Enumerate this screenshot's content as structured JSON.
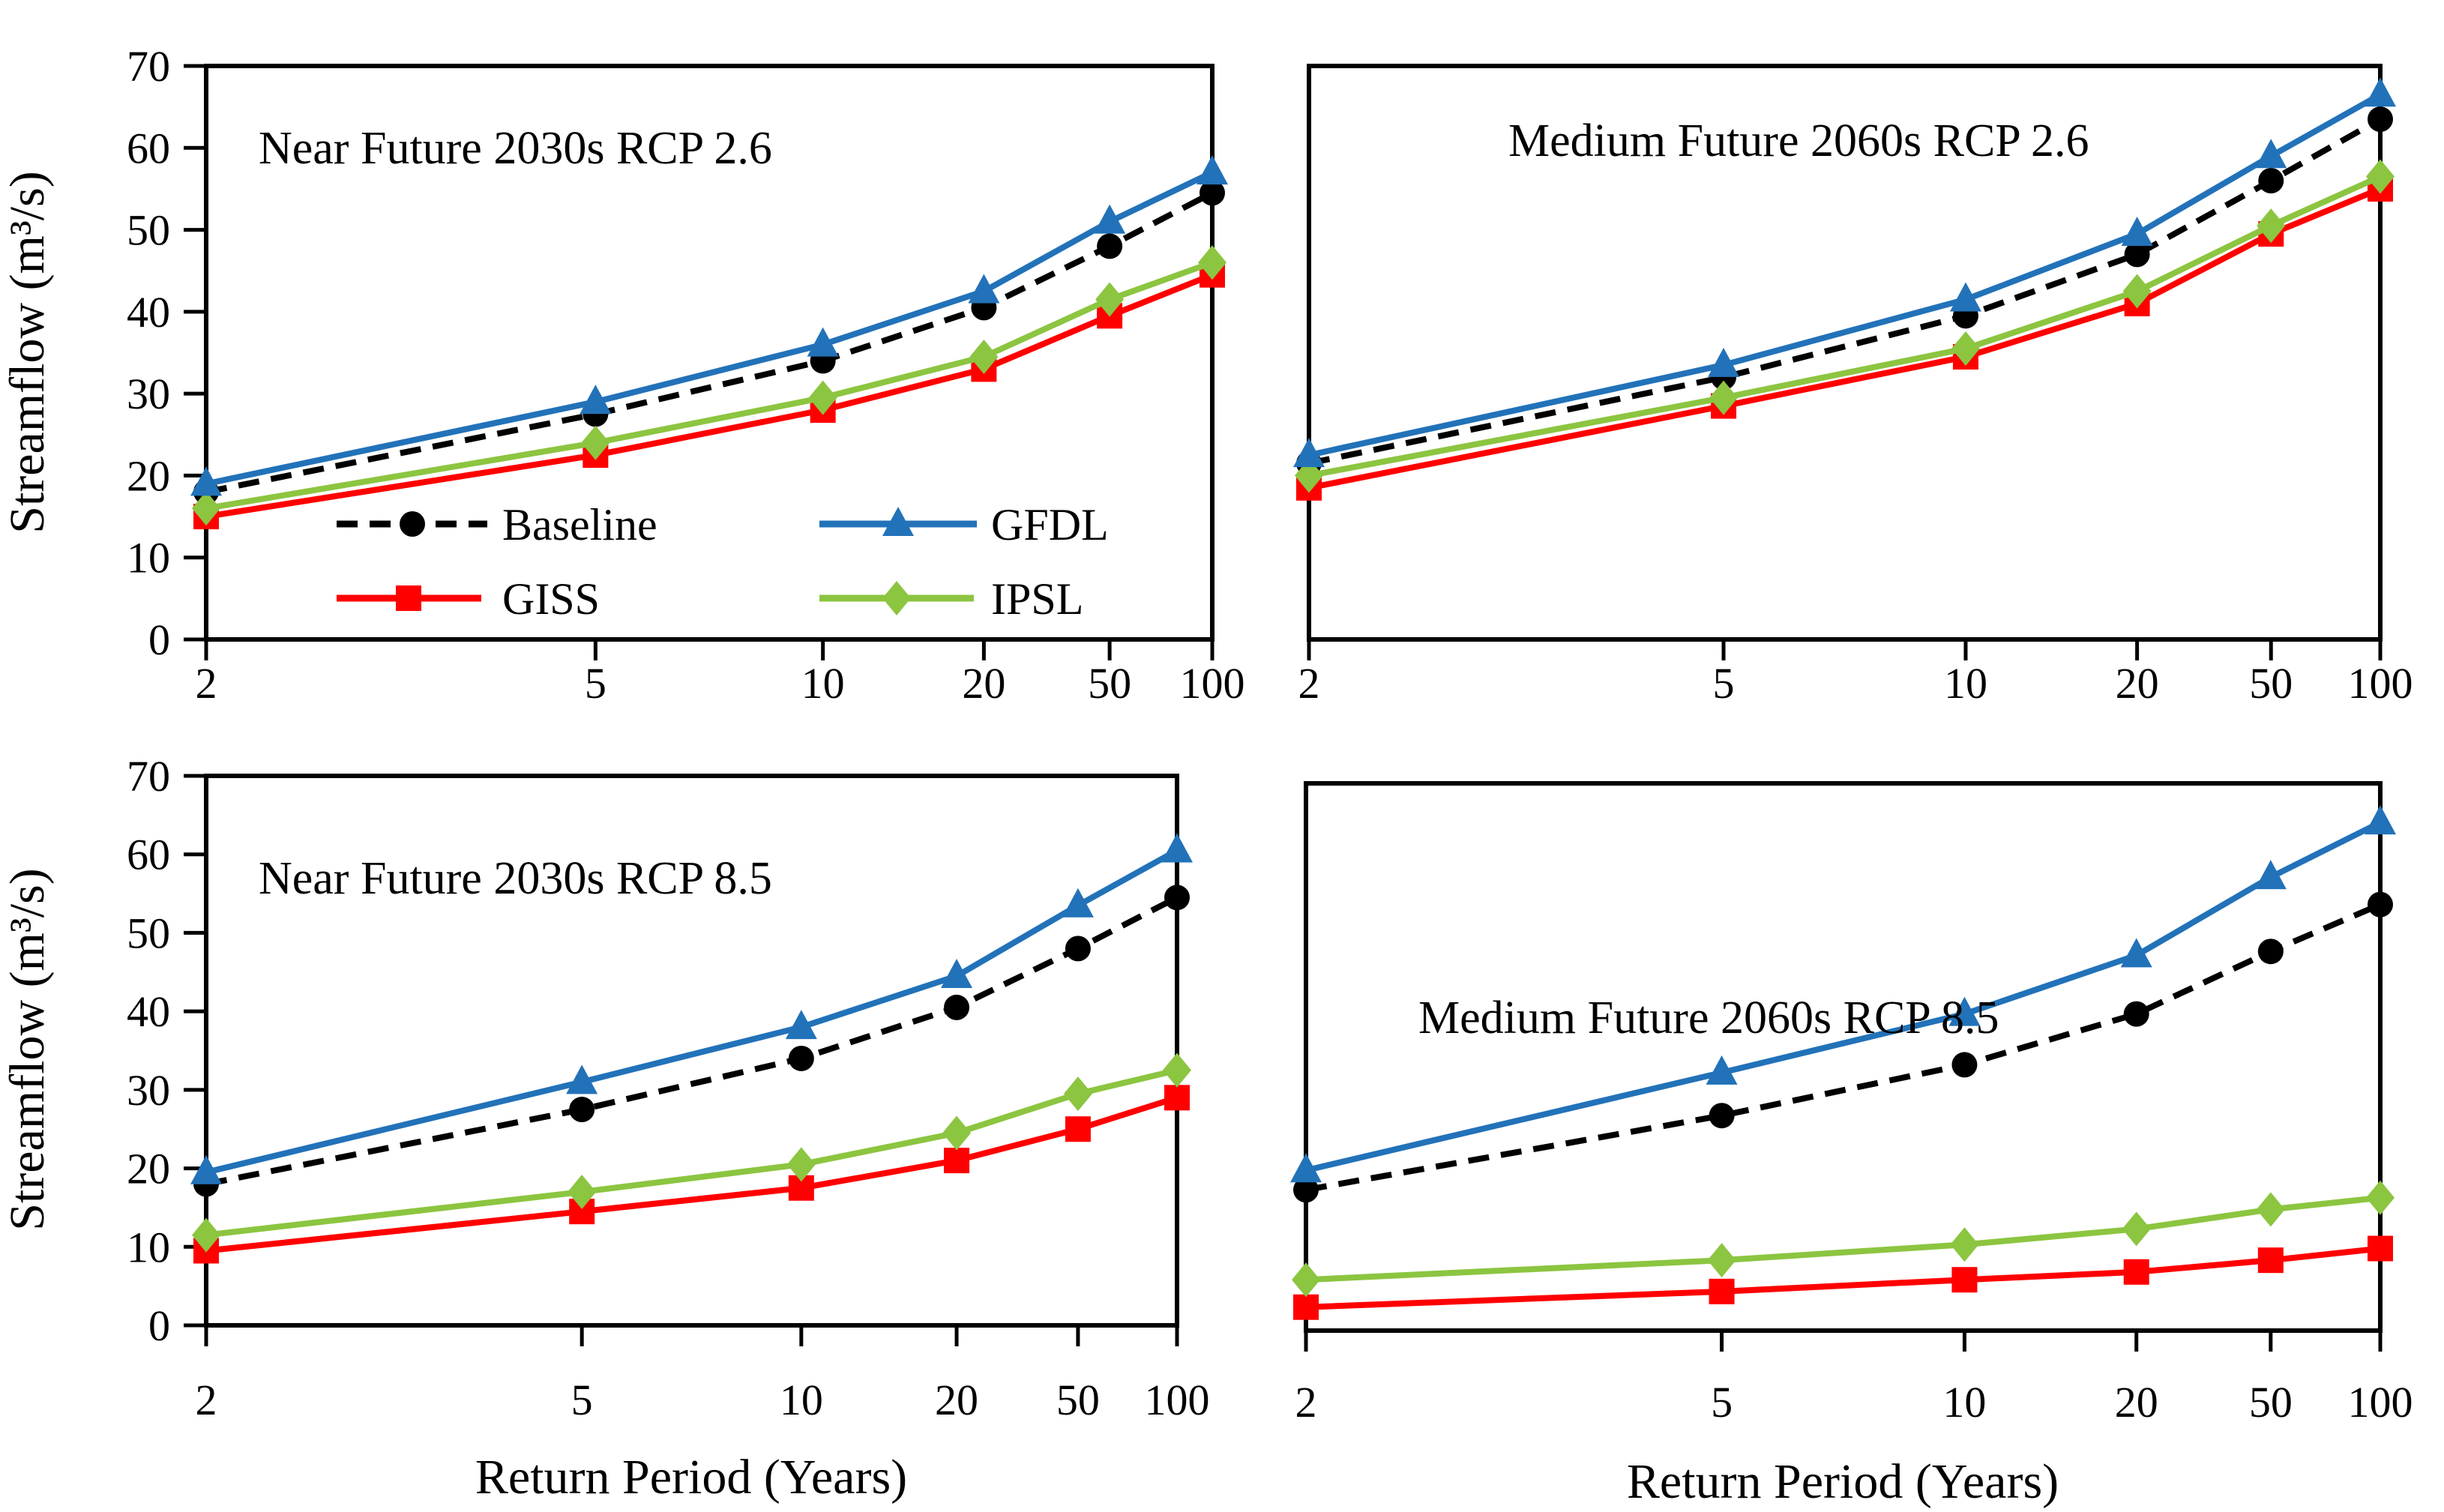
{
  "figure": {
    "background": "#FFFFFF",
    "y_axis_label": "Streamflow (m³/s)",
    "x_axis_label": "Return Period (Years)",
    "x_tick_labels": [
      "2",
      "5",
      "10",
      "20",
      "50",
      "100"
    ],
    "y_tick_labels": [
      "0",
      "10",
      "20",
      "30",
      "40",
      "50",
      "60",
      "70"
    ],
    "colors": {
      "baseline": "#000000",
      "gfdl": "#2272B9",
      "giss": "#FF0000",
      "ipsl": "#8CC540",
      "axis": "#000000"
    },
    "legend": {
      "items": [
        {
          "label": "Baseline",
          "series": "Baseline"
        },
        {
          "label": "GFDL",
          "series": "GFDL"
        },
        {
          "label": "GISS",
          "series": "GISS"
        },
        {
          "label": "IPSL",
          "series": "IPSL"
        }
      ]
    }
  },
  "chart_data": [
    {
      "type": "line",
      "title": "Near Future 2030s RCP 2.6",
      "x": [
        2,
        5,
        10,
        20,
        50,
        100
      ],
      "x_scale": "log-of-rank",
      "xlabel": "Return Period (Years)",
      "ylabel": "Streamflow (m³/s)",
      "ylim": [
        0,
        70
      ],
      "grid": false,
      "legend_position": "inside-lower-left",
      "series": [
        {
          "name": "Baseline",
          "color": "#000000",
          "marker": "circle",
          "line": "dashed",
          "values": [
            18.0,
            27.5,
            34.0,
            40.5,
            48.0,
            54.5
          ]
        },
        {
          "name": "GFDL",
          "color": "#2272B9",
          "marker": "triangle",
          "line": "solid",
          "values": [
            19.0,
            29.0,
            36.0,
            42.5,
            51.0,
            57.0
          ]
        },
        {
          "name": "GISS",
          "color": "#FF0000",
          "marker": "square",
          "line": "solid",
          "values": [
            15.0,
            22.5,
            28.0,
            33.0,
            39.5,
            44.5
          ]
        },
        {
          "name": "IPSL",
          "color": "#8CC540",
          "marker": "diamond",
          "line": "solid",
          "values": [
            16.0,
            24.0,
            29.5,
            34.5,
            41.5,
            46.0
          ]
        }
      ]
    },
    {
      "type": "line",
      "title": "Medium Future 2060s RCP 2.6",
      "x": [
        2,
        5,
        10,
        20,
        50,
        100
      ],
      "x_scale": "log-of-rank",
      "xlabel": "Return Period (Years)",
      "ylabel": "Streamflow (m³/s)",
      "ylim": [
        0,
        70
      ],
      "grid": false,
      "legend_position": "none",
      "series": [
        {
          "name": "Baseline",
          "color": "#000000",
          "marker": "circle",
          "line": "dashed",
          "values": [
            21.5,
            32.0,
            39.5,
            47.0,
            56.0,
            63.5
          ]
        },
        {
          "name": "GFDL",
          "color": "#2272B9",
          "marker": "triangle",
          "line": "solid",
          "values": [
            22.5,
            33.5,
            41.5,
            49.5,
            59.0,
            66.5
          ]
        },
        {
          "name": "GISS",
          "color": "#FF0000",
          "marker": "square",
          "line": "solid",
          "values": [
            18.5,
            28.5,
            34.5,
            41.0,
            49.5,
            55.0
          ]
        },
        {
          "name": "IPSL",
          "color": "#8CC540",
          "marker": "diamond",
          "line": "solid",
          "values": [
            20.0,
            29.5,
            35.5,
            42.5,
            50.5,
            56.5
          ]
        }
      ]
    },
    {
      "type": "line",
      "title": "Near Future 2030s RCP 8.5",
      "x": [
        2,
        5,
        10,
        20,
        50,
        100
      ],
      "x_scale": "log-of-rank",
      "xlabel": "Return Period (Years)",
      "ylabel": "Streamflow (m³/s)",
      "ylim": [
        0,
        70
      ],
      "grid": false,
      "legend_position": "none",
      "series": [
        {
          "name": "Baseline",
          "color": "#000000",
          "marker": "circle",
          "line": "dashed",
          "values": [
            18.0,
            27.5,
            34.0,
            40.5,
            48.0,
            54.5
          ]
        },
        {
          "name": "GFDL",
          "color": "#2272B9",
          "marker": "triangle",
          "line": "solid",
          "values": [
            19.5,
            31.0,
            38.0,
            44.5,
            53.5,
            60.5
          ]
        },
        {
          "name": "GISS",
          "color": "#FF0000",
          "marker": "square",
          "line": "solid",
          "values": [
            9.5,
            14.5,
            17.5,
            21.0,
            25.0,
            29.0
          ]
        },
        {
          "name": "IPSL",
          "color": "#8CC540",
          "marker": "diamond",
          "line": "solid",
          "values": [
            11.5,
            17.0,
            20.5,
            24.5,
            29.5,
            32.5
          ]
        }
      ]
    },
    {
      "type": "line",
      "title": "Medium Future 2060s RCP 8.5",
      "x": [
        2,
        5,
        10,
        20,
        50,
        100
      ],
      "x_scale": "log-of-rank",
      "xlabel": "Return Period (Years)",
      "ylabel": "Streamflow (m³/s)",
      "ylim": [
        0,
        70
      ],
      "grid": false,
      "legend_position": "none",
      "series": [
        {
          "name": "Baseline",
          "color": "#000000",
          "marker": "circle",
          "line": "dashed",
          "values": [
            18.0,
            27.5,
            34.0,
            40.5,
            48.5,
            54.5
          ]
        },
        {
          "name": "GFDL",
          "color": "#2272B9",
          "marker": "triangle",
          "line": "solid",
          "values": [
            20.5,
            33.0,
            40.5,
            48.0,
            58.0,
            65.0
          ]
        },
        {
          "name": "GISS",
          "color": "#FF0000",
          "marker": "square",
          "line": "solid",
          "values": [
            3.0,
            5.0,
            6.5,
            7.5,
            9.0,
            10.5
          ]
        },
        {
          "name": "IPSL",
          "color": "#8CC540",
          "marker": "diamond",
          "line": "solid",
          "values": [
            6.5,
            9.0,
            11.0,
            13.0,
            15.5,
            17.0
          ]
        }
      ]
    }
  ]
}
